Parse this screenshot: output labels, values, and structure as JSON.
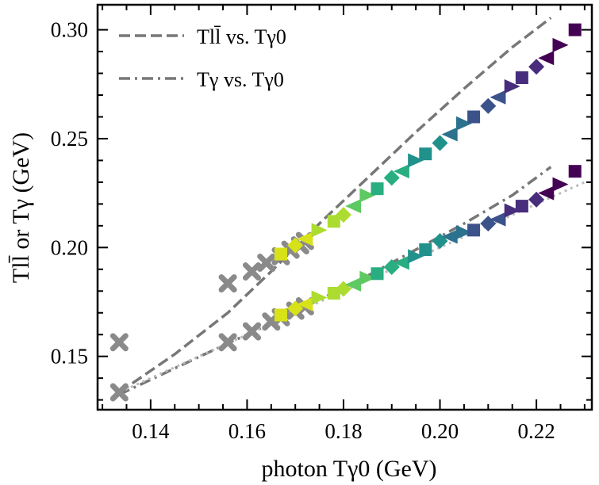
{
  "chart_data": {
    "type": "scatter",
    "xlabel": "photon Tγ0 (GeV)",
    "ylabel": "Tll̄ or Tγ (GeV)",
    "xlim": [
      0.129,
      0.2315
    ],
    "ylim": [
      0.1255,
      0.3115
    ],
    "xticks": [
      0.14,
      0.16,
      0.18,
      0.2,
      0.22
    ],
    "yticks": [
      0.15,
      0.2,
      0.25,
      0.3
    ],
    "xtick_labels": [
      "0.14",
      "0.16",
      "0.18",
      "0.20",
      "0.22"
    ],
    "ytick_labels": [
      "0.15",
      "0.20",
      "0.25",
      "0.30"
    ],
    "legend_position": "top-left",
    "legend": [
      {
        "text": "Tll̄ vs. Tγ0",
        "style": "dashed"
      },
      {
        "text": "Tγ vs. Tγ0",
        "style": "dashdot"
      }
    ],
    "series": [
      {
        "name": "Tll̄ vs. Tγ0",
        "style": "dashed",
        "color": "#777777",
        "x": [
          0.1335,
          0.145,
          0.156,
          0.165,
          0.175,
          0.185,
          0.195,
          0.205,
          0.215,
          0.223
        ],
        "y": [
          0.1335,
          0.151,
          0.17,
          0.189,
          0.211,
          0.232,
          0.253,
          0.273,
          0.292,
          0.3055
        ]
      },
      {
        "name": "Tγ vs. Tγ0",
        "style": "dashdot",
        "color": "#777777",
        "x": [
          0.1335,
          0.145,
          0.156,
          0.165,
          0.175,
          0.185,
          0.195,
          0.205,
          0.215,
          0.223
        ],
        "y": [
          0.1325,
          0.1445,
          0.156,
          0.165,
          0.176,
          0.187,
          0.199,
          0.211,
          0.224,
          0.237
        ]
      },
      {
        "name": "reference",
        "style": "dotted",
        "color": "#bbbbbb",
        "x": [
          0.1335,
          0.18,
          0.23
        ],
        "y": [
          0.1335,
          0.18,
          0.23
        ]
      }
    ],
    "markers_grey_upper": {
      "x": [
        0.1335,
        0.156,
        0.161,
        0.164,
        0.167,
        0.169,
        0.171,
        0.172
      ],
      "y": [
        0.1565,
        0.1835,
        0.189,
        0.193,
        0.196,
        0.199,
        0.201,
        0.203
      ]
    },
    "markers_grey_lower": {
      "x": [
        0.1335,
        0.156,
        0.161,
        0.165,
        0.167,
        0.17,
        0.172
      ],
      "y": [
        0.1335,
        0.1565,
        0.1615,
        0.166,
        0.168,
        0.171,
        0.173
      ]
    },
    "markers_colored_upper": {
      "x": [
        0.167,
        0.17,
        0.172,
        0.175,
        0.178,
        0.18,
        0.182,
        0.185,
        0.187,
        0.19,
        0.192,
        0.195,
        0.197,
        0.2,
        0.202,
        0.205,
        0.207,
        0.21,
        0.212,
        0.215,
        0.217,
        0.22,
        0.222,
        0.225,
        0.228
      ],
      "y": [
        0.197,
        0.201,
        0.204,
        0.208,
        0.212,
        0.215,
        0.219,
        0.224,
        0.227,
        0.232,
        0.235,
        0.24,
        0.243,
        0.248,
        0.252,
        0.257,
        0.26,
        0.265,
        0.269,
        0.274,
        0.278,
        0.283,
        0.287,
        0.293,
        0.3
      ]
    },
    "markers_colored_lower": {
      "x": [
        0.167,
        0.17,
        0.172,
        0.175,
        0.178,
        0.18,
        0.182,
        0.185,
        0.187,
        0.19,
        0.192,
        0.195,
        0.197,
        0.2,
        0.202,
        0.205,
        0.207,
        0.21,
        0.212,
        0.215,
        0.217,
        0.22,
        0.222,
        0.225,
        0.228
      ],
      "y": [
        0.169,
        0.172,
        0.174,
        0.177,
        0.179,
        0.181,
        0.183,
        0.186,
        0.188,
        0.191,
        0.193,
        0.196,
        0.199,
        0.203,
        0.205,
        0.207,
        0.208,
        0.211,
        0.213,
        0.217,
        0.219,
        0.222,
        0.225,
        0.229,
        0.235
      ]
    },
    "marker_colors": [
      "#d8e219",
      "#addc30",
      "#5ec962",
      "#28ae80",
      "#21918c",
      "#2c728e",
      "#3b528b",
      "#472d7b",
      "#440154"
    ]
  }
}
